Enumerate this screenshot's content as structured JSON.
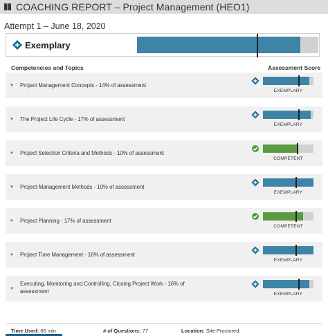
{
  "header": {
    "title": "COACHING REPORT – Project Management (HEO1)",
    "background": "#dcdcdc"
  },
  "attempt": "Attempt 1 – June 18, 2020",
  "summary": {
    "label": "Exemplary",
    "icon": "diamond-plus-icon",
    "fill_fraction": 0.9,
    "marker_fraction": 0.66
  },
  "columns": {
    "left": "Competencies and Topics",
    "right": "Assessment Score"
  },
  "colors": {
    "exemplary": "#3d84a6",
    "competent": "#5a9a43",
    "track": "#d0d0d0"
  },
  "topics": [
    {
      "name": "Project Management Concepts - 14% of assessment",
      "level": "EXEMPLARY",
      "icon": "diamond-plus-icon",
      "fill_fraction": 0.92,
      "marker_fraction": 0.7
    },
    {
      "name": "The Project Life Cycle - 17% of assessment",
      "level": "EXEMPLARY",
      "icon": "diamond-plus-icon",
      "fill_fraction": 0.94,
      "marker_fraction": 0.7
    },
    {
      "name": "Project Selection Criteria and Methods - 10% of assessment",
      "level": "COMPETENT",
      "icon": "check-circle-icon",
      "fill_fraction": 0.67,
      "marker_fraction": 0.67
    },
    {
      "name": "Project-Management Methods - 10% of assessment",
      "level": "EXEMPLARY",
      "icon": "diamond-plus-icon",
      "fill_fraction": 1.0,
      "marker_fraction": 0.65
    },
    {
      "name": "Project Planning - 17% of assessment",
      "level": "COMPETENT",
      "icon": "check-circle-icon",
      "fill_fraction": 0.79,
      "marker_fraction": 0.65
    },
    {
      "name": "Project Time Management - 16% of assessment",
      "level": "EXEMPLARY",
      "icon": "diamond-plus-icon",
      "fill_fraction": 1.0,
      "marker_fraction": 0.65
    },
    {
      "name": "Executing, Monitoring and Controlling, Closing Project Work - 16% of assessment",
      "level": "EXEMPLARY",
      "icon": "diamond-plus-icon",
      "fill_fraction": 0.92,
      "marker_fraction": 0.7
    }
  ],
  "footer": {
    "time_label": "Time Used:",
    "time_value": "66 min",
    "questions_label": "# of Questions:",
    "questions_value": "77",
    "location_label": "Location:",
    "location_value": "Site Proctored"
  }
}
